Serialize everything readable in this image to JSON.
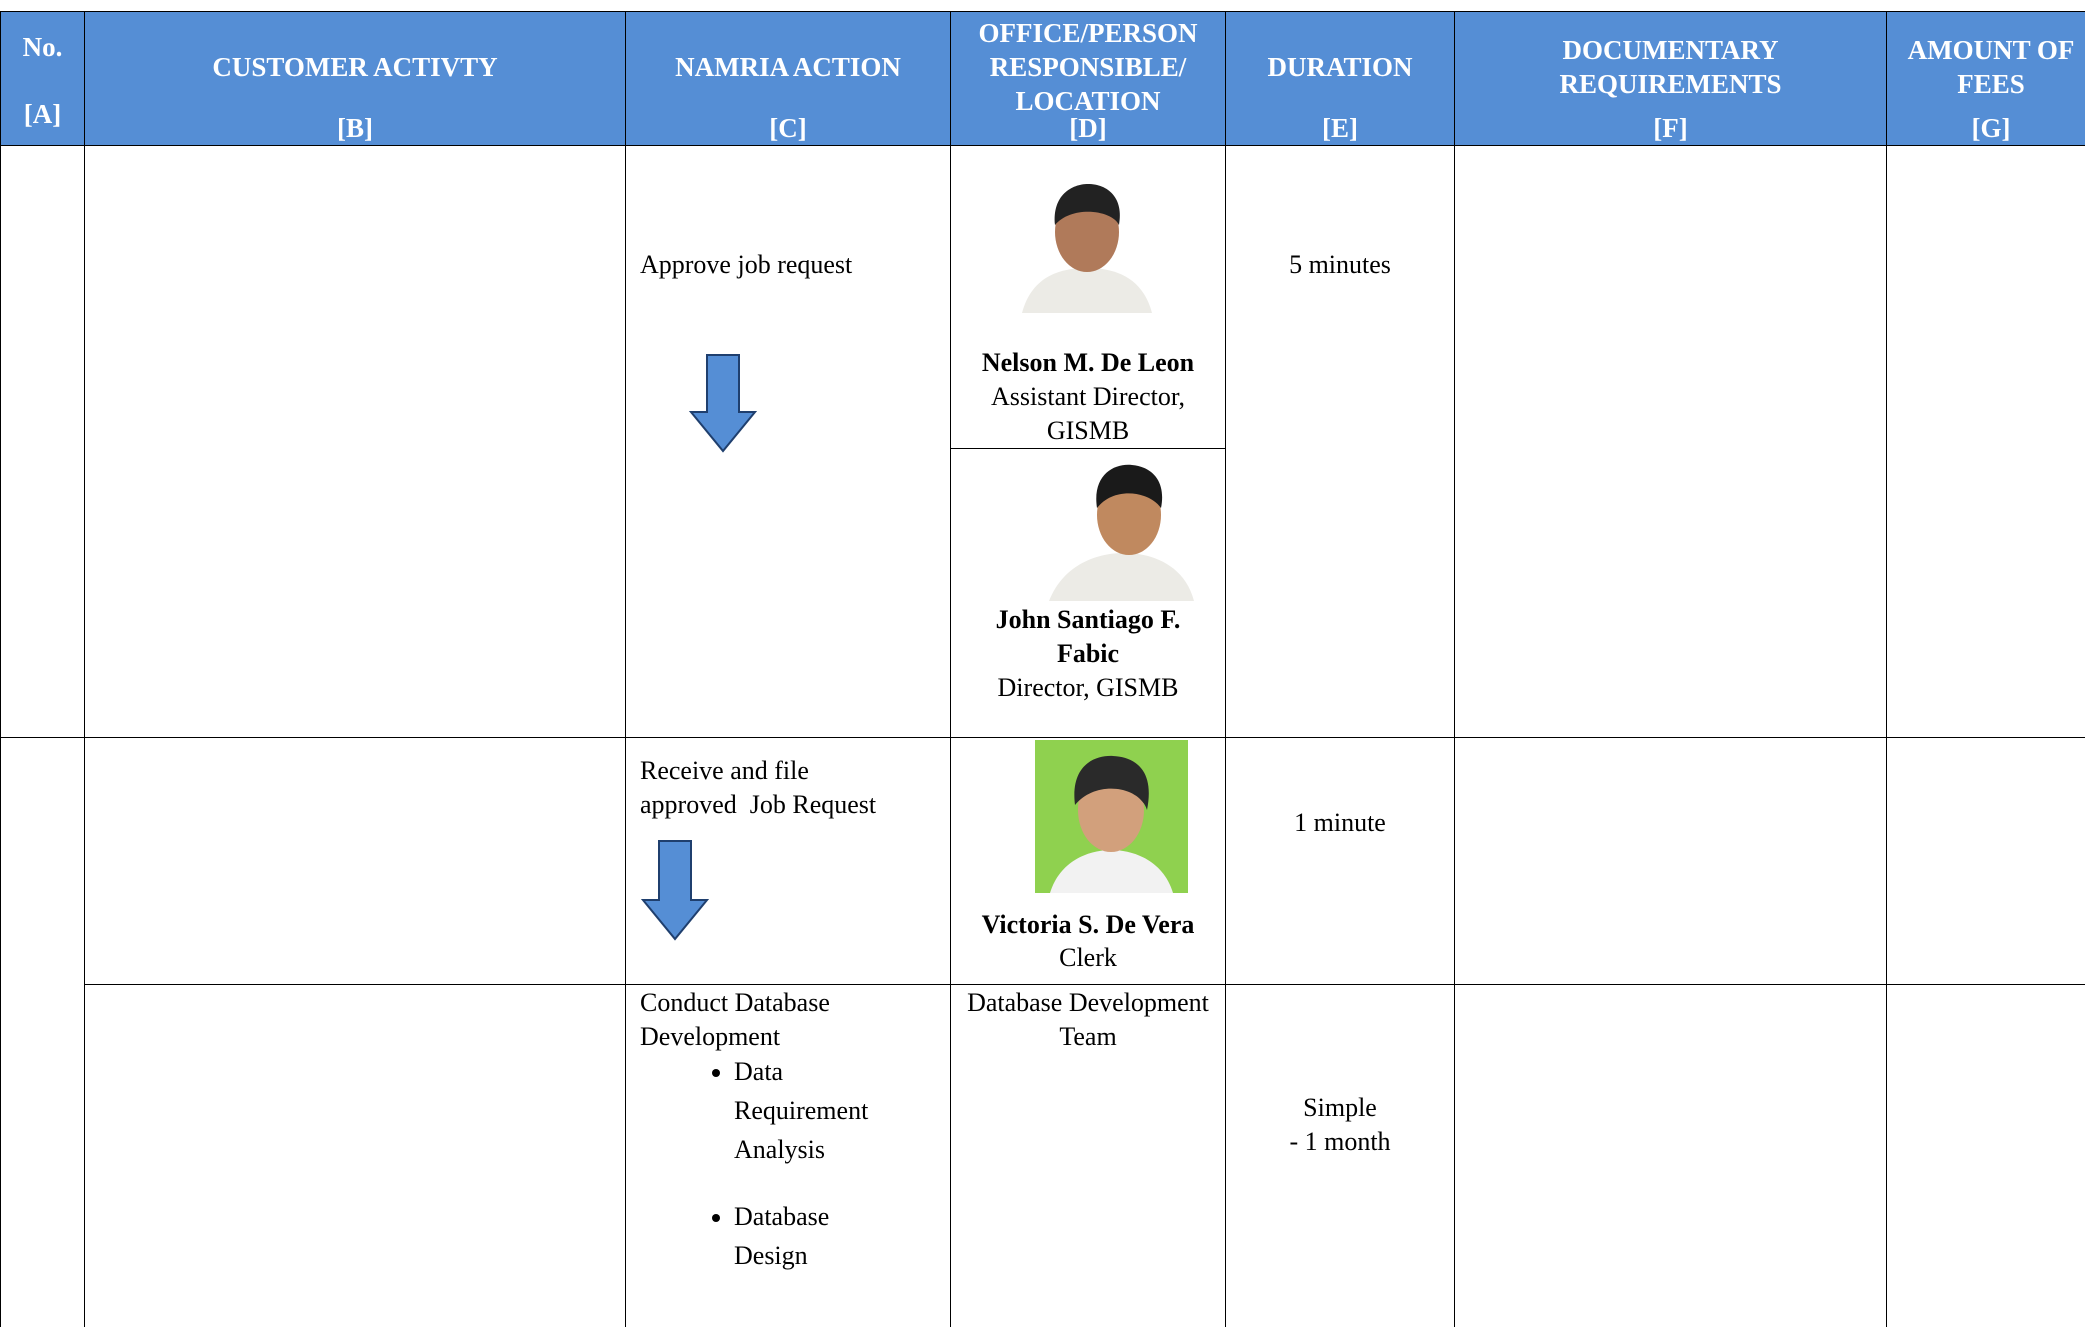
{
  "header": {
    "columns": [
      {
        "label": "No.",
        "letter": "[A]"
      },
      {
        "label": "CUSTOMER ACTIVTY",
        "letter": "[B]"
      },
      {
        "label": "NAMRIA ACTION",
        "letter": "[C]"
      },
      {
        "label": "OFFICE/PERSON RESPONSIBLE/ LOCATION",
        "letter": "[D]"
      },
      {
        "label": "DURATION",
        "letter": "[E]"
      },
      {
        "label": "DOCUMENTARY REQUIREMENTS",
        "letter": "[F]"
      },
      {
        "label": "AMOUNT OF FEES",
        "letter": "[G]"
      }
    ]
  },
  "rows": [
    {
      "action": "Approve job request",
      "persons": [
        {
          "name": "Nelson M. De Leon",
          "role": "Assistant Director, GISMB"
        },
        {
          "name": "John Santiago F. Fabic",
          "role": "Director, GISMB"
        }
      ],
      "duration": "5 minutes"
    },
    {
      "action": "Receive and file approved  Job Request",
      "persons": [
        {
          "name": "Victoria S. De Vera",
          "role": "Clerk"
        }
      ],
      "duration": "1 minute"
    },
    {
      "action": "Conduct Database Development",
      "steps": [
        "Data Requirement Analysis",
        "Database Design"
      ],
      "office": "Database Development Team",
      "duration": [
        "Simple",
        "- 1 month"
      ]
    }
  ]
}
